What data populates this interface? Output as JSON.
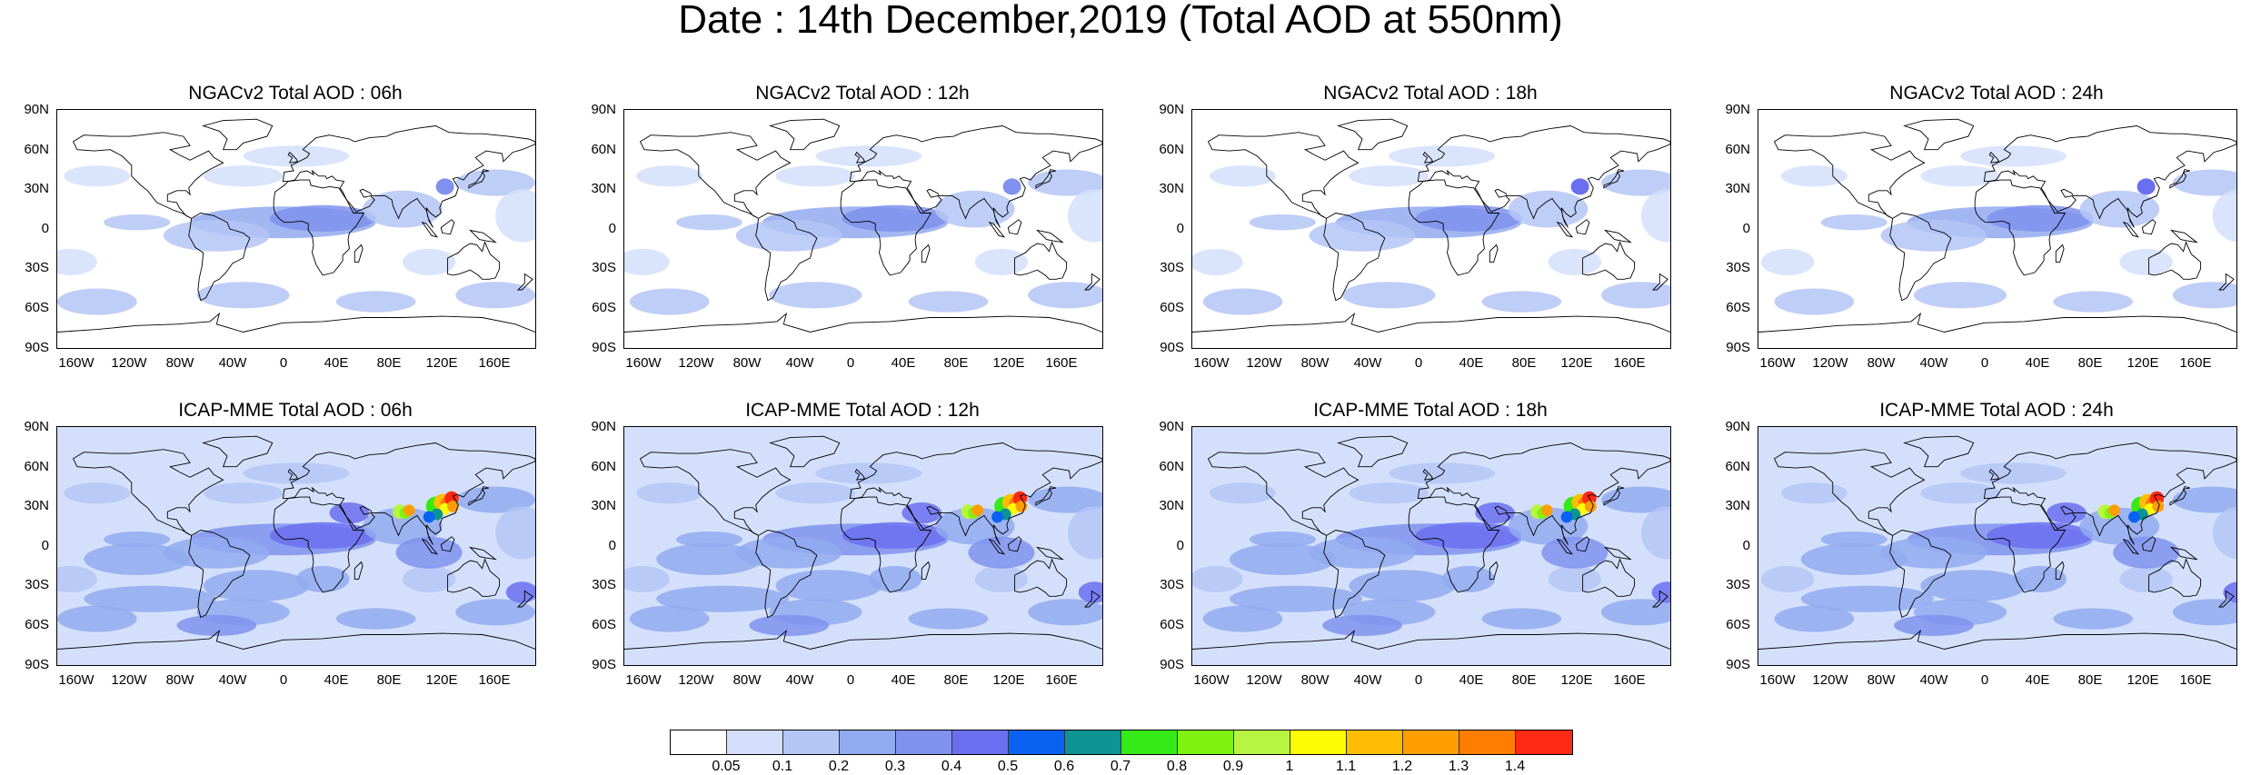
{
  "figure": {
    "title": "Date : 14th December,2019 (Total AOD at 550nm)"
  },
  "axes": {
    "lat_labels": [
      "90N",
      "60N",
      "30N",
      "0",
      "30S",
      "60S",
      "90S"
    ],
    "lon_labels": [
      "160W",
      "120W",
      "80W",
      "40W",
      "0",
      "40E",
      "80E",
      "120E",
      "160E"
    ]
  },
  "panels": [
    {
      "title": "NGACv2 Total AOD : 06h",
      "model": "NGAC",
      "hour": 6
    },
    {
      "title": "NGACv2 Total AOD : 12h",
      "model": "NGAC",
      "hour": 12
    },
    {
      "title": "NGACv2 Total AOD : 18h",
      "model": "NGAC",
      "hour": 18
    },
    {
      "title": "NGACv2 Total AOD : 24h",
      "model": "NGAC",
      "hour": 24
    },
    {
      "title": "ICAP-MME Total AOD : 06h",
      "model": "ICAP",
      "hour": 6
    },
    {
      "title": "ICAP-MME Total AOD : 12h",
      "model": "ICAP",
      "hour": 12
    },
    {
      "title": "ICAP-MME Total AOD : 18h",
      "model": "ICAP",
      "hour": 18
    },
    {
      "title": "ICAP-MME Total AOD : 24h",
      "model": "ICAP",
      "hour": 24
    }
  ],
  "colorbar": {
    "labels": [
      "0.05",
      "0.1",
      "0.2",
      "0.3",
      "0.4",
      "0.5",
      "0.6",
      "0.7",
      "0.8",
      "0.9",
      "1",
      "1.1",
      "1.2",
      "1.3",
      "1.4"
    ],
    "colors": [
      "#ffffff",
      "#d4e0fb",
      "#b4c6f6",
      "#92aaf0",
      "#7f92ed",
      "#6a6ff0",
      "#0a62f2",
      "#0c9494",
      "#36ea18",
      "#7ff311",
      "#b8f442",
      "#fefc05",
      "#ffbe04",
      "#ff9e00",
      "#ff7d00",
      "#ff2a14"
    ]
  }
}
